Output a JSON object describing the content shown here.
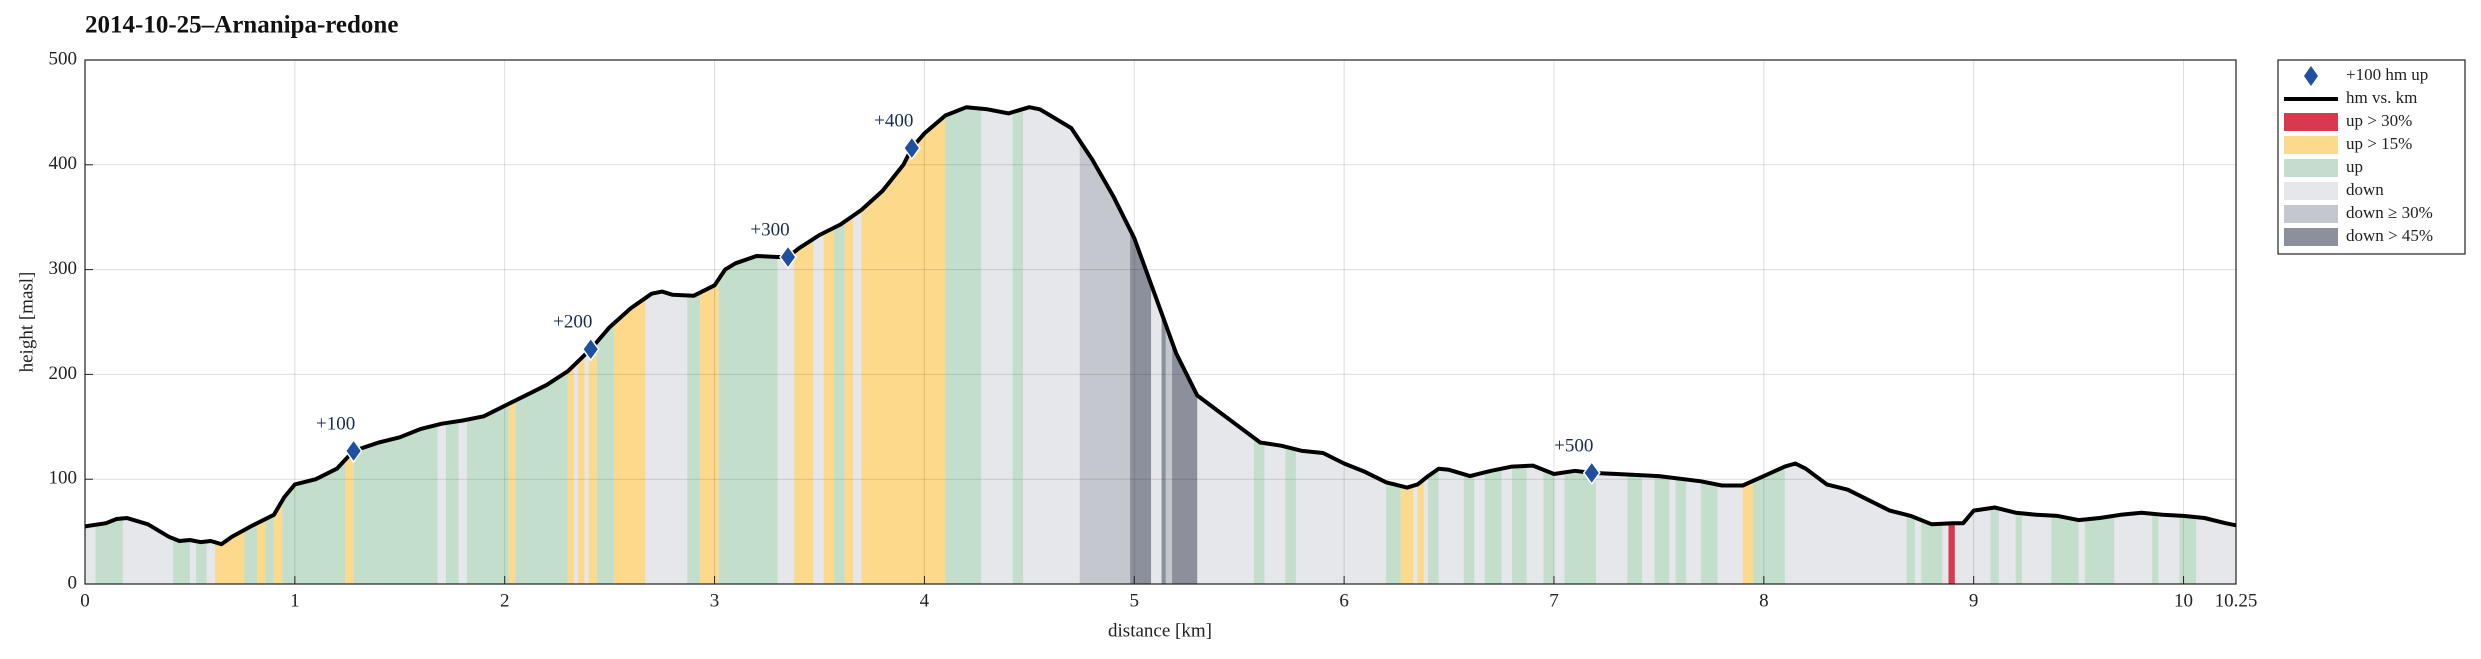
{
  "chart_data": {
    "type": "elevation-profile",
    "title": "2014-10-25–Arnanipa-redone",
    "xlabel": "distance [km]",
    "ylabel": "height [masl]",
    "xlim": [
      0,
      10.25
    ],
    "xticks": [
      0,
      1,
      2,
      3,
      4,
      5,
      6,
      7,
      8,
      9,
      10,
      10.25
    ],
    "ylim": [
      0,
      500
    ],
    "yticks": [
      0,
      100,
      200,
      300,
      400,
      500
    ],
    "grid": true,
    "legend": "outside-right",
    "series": [
      {
        "name": "+100 hm up",
        "color": "#1f4fa0",
        "marker": "diamond",
        "x": [
          1.28,
          2.41,
          3.35,
          3.94,
          7.18
        ],
        "values": [
          127,
          224,
          312,
          416,
          106
        ],
        "labels": [
          "+100",
          "+200",
          "+300",
          "+400",
          "+500"
        ]
      },
      {
        "name": "hm vs. km",
        "color": "#000000",
        "x": [
          0,
          0.1,
          0.15,
          0.2,
          0.3,
          0.4,
          0.45,
          0.5,
          0.55,
          0.6,
          0.65,
          0.7,
          0.8,
          0.9,
          0.95,
          1.0,
          1.1,
          1.2,
          1.28,
          1.4,
          1.5,
          1.6,
          1.7,
          1.8,
          1.9,
          2.0,
          2.1,
          2.2,
          2.3,
          2.41,
          2.5,
          2.6,
          2.7,
          2.75,
          2.8,
          2.9,
          3.0,
          3.05,
          3.1,
          3.2,
          3.3,
          3.35,
          3.4,
          3.5,
          3.6,
          3.7,
          3.8,
          3.9,
          3.94,
          4.0,
          4.1,
          4.2,
          4.3,
          4.4,
          4.5,
          4.55,
          4.6,
          4.7,
          4.8,
          4.9,
          5.0,
          5.1,
          5.2,
          5.3,
          5.4,
          5.5,
          5.6,
          5.7,
          5.8,
          5.9,
          6.0,
          6.1,
          6.2,
          6.3,
          6.35,
          6.4,
          6.45,
          6.5,
          6.6,
          6.7,
          6.8,
          6.9,
          7.0,
          7.1,
          7.18,
          7.3,
          7.5,
          7.7,
          7.8,
          7.9,
          8.0,
          8.1,
          8.15,
          8.2,
          8.3,
          8.4,
          8.5,
          8.6,
          8.7,
          8.8,
          8.9,
          8.95,
          9.0,
          9.1,
          9.2,
          9.3,
          9.4,
          9.5,
          9.6,
          9.7,
          9.8,
          9.9,
          10.0,
          10.1,
          10.2,
          10.25
        ],
        "values": [
          55,
          58,
          62,
          63,
          57,
          45,
          41,
          42,
          40,
          41,
          38,
          45,
          56,
          66,
          83,
          95,
          100,
          110,
          127,
          135,
          140,
          148,
          153,
          156,
          160,
          170,
          180,
          190,
          203,
          224,
          245,
          263,
          277,
          279,
          276,
          275,
          285,
          300,
          306,
          313,
          312,
          312,
          320,
          333,
          343,
          357,
          375,
          400,
          416,
          430,
          447,
          455,
          453,
          449,
          455,
          453,
          447,
          435,
          405,
          370,
          330,
          275,
          220,
          180,
          165,
          150,
          135,
          132,
          127,
          125,
          115,
          107,
          97,
          92,
          95,
          103,
          110,
          109,
          103,
          108,
          112,
          113,
          105,
          108,
          106,
          105,
          103,
          98,
          94,
          94,
          103,
          112,
          115,
          110,
          95,
          90,
          80,
          70,
          65,
          57,
          58,
          58,
          70,
          73,
          68,
          66,
          65,
          61,
          63,
          66,
          68,
          66,
          65,
          63,
          58,
          56
        ]
      },
      {
        "name": "up > 30%",
        "color": "#d9394e",
        "spans": [
          [
            8.88,
            8.91
          ]
        ]
      },
      {
        "name": "up > 15%",
        "color": "#fdd98c",
        "spans": [
          [
            0.62,
            0.76
          ],
          [
            0.82,
            0.86
          ],
          [
            0.9,
            0.94
          ],
          [
            1.24,
            1.28
          ],
          [
            2.02,
            2.05
          ],
          [
            2.3,
            2.33
          ],
          [
            2.35,
            2.38
          ],
          [
            2.4,
            2.44
          ],
          [
            2.52,
            2.67
          ],
          [
            2.93,
            3.02
          ],
          [
            3.38,
            3.47
          ],
          [
            3.52,
            3.57
          ],
          [
            3.62,
            3.66
          ],
          [
            3.7,
            4.1
          ],
          [
            6.27,
            6.33
          ],
          [
            6.35,
            6.38
          ],
          [
            7.9,
            7.95
          ]
        ]
      },
      {
        "name": "up",
        "color": "#c3dfcc",
        "spans": [
          [
            0.05,
            0.18
          ],
          [
            0.42,
            0.5
          ],
          [
            0.53,
            0.58
          ],
          [
            0.76,
            0.82
          ],
          [
            0.86,
            0.9
          ],
          [
            0.94,
            1.24
          ],
          [
            1.28,
            1.68
          ],
          [
            1.72,
            1.78
          ],
          [
            1.82,
            2.02
          ],
          [
            2.05,
            2.3
          ],
          [
            2.44,
            2.52
          ],
          [
            2.87,
            2.93
          ],
          [
            3.02,
            3.3
          ],
          [
            3.57,
            3.62
          ],
          [
            4.1,
            4.27
          ],
          [
            4.42,
            4.47
          ],
          [
            5.57,
            5.62
          ],
          [
            5.72,
            5.77
          ],
          [
            6.2,
            6.27
          ],
          [
            6.4,
            6.45
          ],
          [
            6.57,
            6.62
          ],
          [
            6.67,
            6.75
          ],
          [
            6.8,
            6.87
          ],
          [
            6.95,
            7.0
          ],
          [
            7.05,
            7.2
          ],
          [
            7.35,
            7.42
          ],
          [
            7.48,
            7.55
          ],
          [
            7.58,
            7.63
          ],
          [
            7.7,
            7.78
          ],
          [
            7.95,
            8.1
          ],
          [
            8.68,
            8.72
          ],
          [
            8.75,
            8.85
          ],
          [
            9.08,
            9.12
          ],
          [
            9.2,
            9.23
          ],
          [
            9.37,
            9.5
          ],
          [
            9.53,
            9.67
          ],
          [
            9.85,
            9.88
          ],
          [
            9.98,
            10.06
          ]
        ]
      },
      {
        "name": "down",
        "color": "#e6e7ea",
        "fill": "under-profile"
      },
      {
        "name": "down ≥ 30%",
        "color": "#c5c7ce",
        "spans": [
          [
            4.74,
            4.98
          ],
          [
            5.15,
            5.18
          ]
        ]
      },
      {
        "name": "down > 45%",
        "color": "#8c909c",
        "spans": [
          [
            4.98,
            5.08
          ],
          [
            5.13,
            5.15
          ],
          [
            5.18,
            5.3
          ]
        ]
      }
    ]
  }
}
